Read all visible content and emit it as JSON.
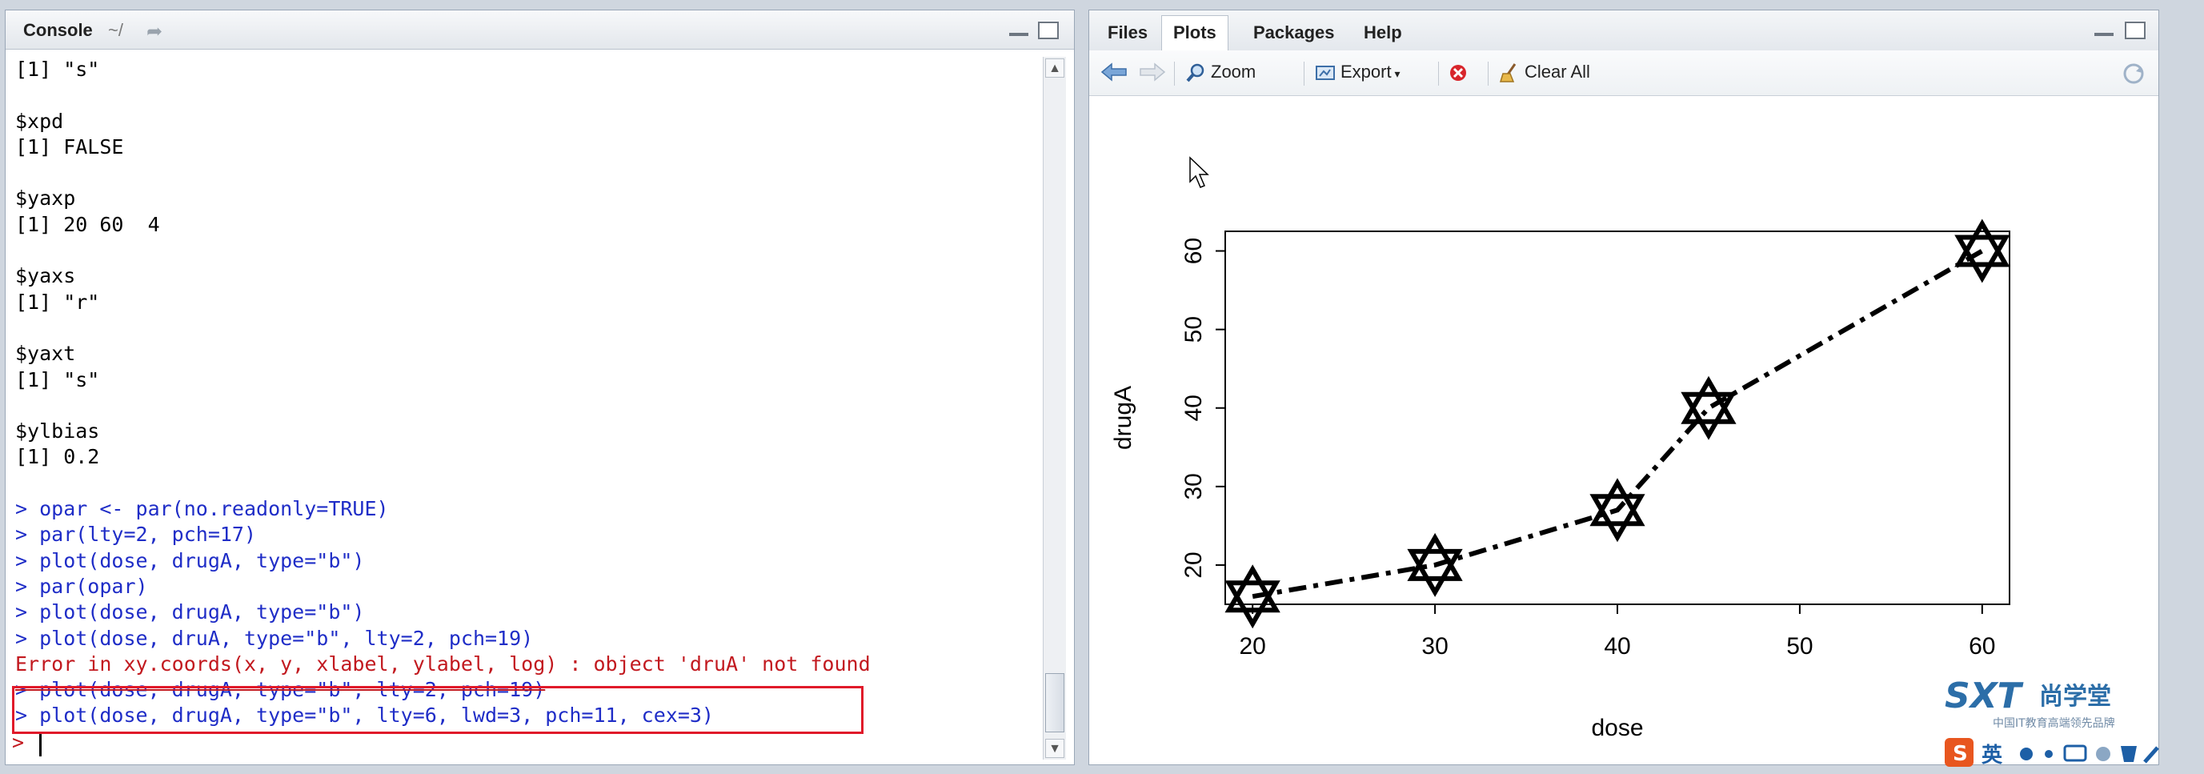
{
  "console": {
    "title": "Console",
    "path": "~/",
    "lines": [
      {
        "text": "[1] \"s\"",
        "kind": "out"
      },
      {
        "text": "",
        "kind": "out"
      },
      {
        "text": "$xpd",
        "kind": "out"
      },
      {
        "text": "[1] FALSE",
        "kind": "out"
      },
      {
        "text": "",
        "kind": "out"
      },
      {
        "text": "$yaxp",
        "kind": "out"
      },
      {
        "text": "[1] 20 60  4",
        "kind": "out"
      },
      {
        "text": "",
        "kind": "out"
      },
      {
        "text": "$yaxs",
        "kind": "out"
      },
      {
        "text": "[1] \"r\"",
        "kind": "out"
      },
      {
        "text": "",
        "kind": "out"
      },
      {
        "text": "$yaxt",
        "kind": "out"
      },
      {
        "text": "[1] \"s\"",
        "kind": "out"
      },
      {
        "text": "",
        "kind": "out"
      },
      {
        "text": "$ylbias",
        "kind": "out"
      },
      {
        "text": "[1] 0.2",
        "kind": "out"
      },
      {
        "text": "",
        "kind": "out"
      },
      {
        "text": "> opar <- par(no.readonly=TRUE)",
        "kind": "cmd"
      },
      {
        "text": "> par(lty=2, pch=17)",
        "kind": "cmd"
      },
      {
        "text": "> plot(dose, drugA, type=\"b\")",
        "kind": "cmd"
      },
      {
        "text": "> par(opar)",
        "kind": "cmd"
      },
      {
        "text": "> plot(dose, drugA, type=\"b\")",
        "kind": "cmd"
      },
      {
        "text": "> plot(dose, druA, type=\"b\", lty=2, pch=19)",
        "kind": "cmd"
      },
      {
        "text": "Error in xy.coords(x, y, xlabel, ylabel, log) : object 'druA' not found",
        "kind": "err"
      },
      {
        "text": "> plot(dose, drugA, type=\"b\", lty=2, pch=19)",
        "kind": "cmd-struck"
      },
      {
        "text": "> plot(dose, drugA, type=\"b\", lty=6, lwd=3, pch=11, cex=3)",
        "kind": "cmd"
      }
    ],
    "prompt": ">"
  },
  "plots_pane": {
    "tabs": [
      {
        "label": "Files",
        "active": false
      },
      {
        "label": "Plots",
        "active": true
      },
      {
        "label": "Packages",
        "active": false
      },
      {
        "label": "Help",
        "active": false
      }
    ],
    "toolbar": {
      "zoom": "Zoom",
      "export": "Export",
      "clear_all": "Clear All"
    }
  },
  "chart_data": {
    "type": "line",
    "title": "",
    "xlabel": "dose",
    "ylabel": "drugA",
    "x": [
      20,
      30,
      40,
      45,
      60
    ],
    "series": [
      {
        "values": [
          16,
          20,
          27,
          40,
          60
        ]
      }
    ],
    "xlim": [
      20,
      60
    ],
    "ylim": [
      15,
      62
    ],
    "x_ticks": [
      20,
      30,
      40,
      50,
      60
    ],
    "y_ticks": [
      20,
      30,
      40,
      50,
      60
    ],
    "line_style": "dashed",
    "marker": "star-of-david",
    "grid": false,
    "legend": "none"
  },
  "branding": {
    "logo_text": "SXT",
    "cn_name": "尚学堂",
    "slogan": "中国IT教育高端领先品牌",
    "ime_label": "英"
  },
  "colors": {
    "command": "#1f2dc7",
    "error": "#c2191f",
    "highlight": "#e01a2a"
  }
}
